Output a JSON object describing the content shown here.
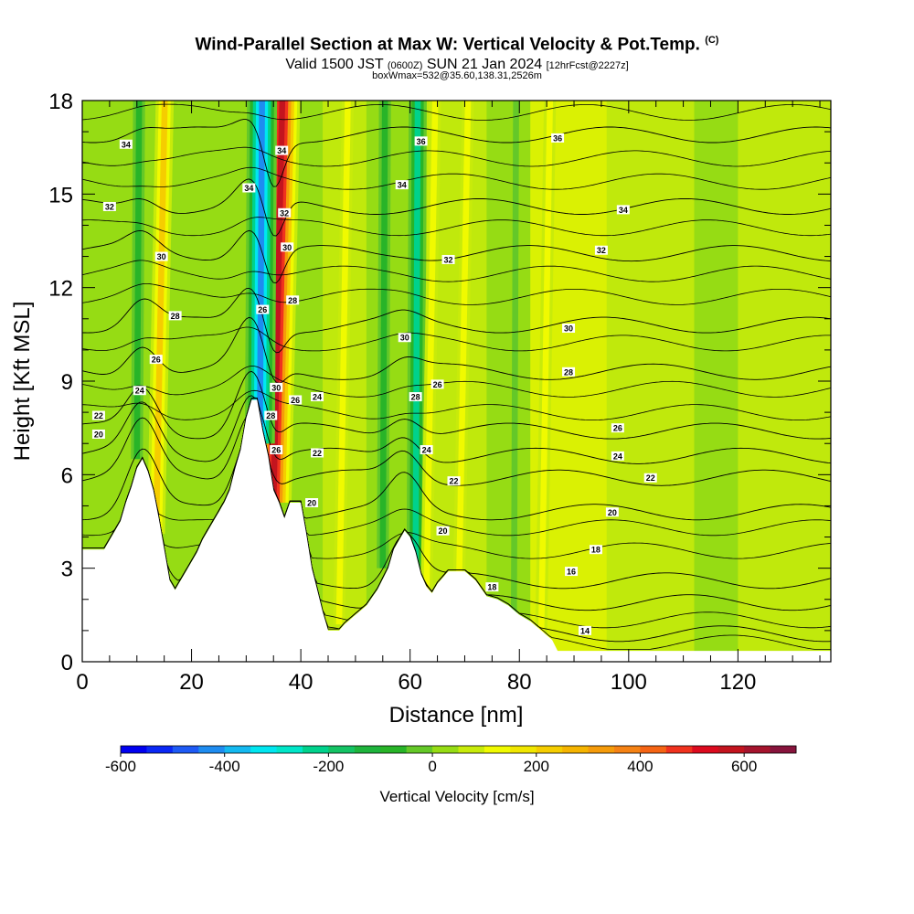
{
  "title": {
    "main": "Wind-Parallel Section at Max W: Vertical Velocity & Pot.Temp.",
    "copyright": "(C)",
    "valid_prefix": "Valid 1500 JST",
    "valid_utc": "(0600Z)",
    "valid_date": "SUN 21 Jan 2024",
    "forecast": "[12hrFcst@2227z]",
    "box_info": "boxWmax=532@35.60,138.31,2526m"
  },
  "chart_data": {
    "type": "heatmap",
    "xlabel": "Distance [nm]",
    "ylabel": "Height [Kft MSL]",
    "xlim": [
      0,
      137
    ],
    "ylim": [
      0,
      18
    ],
    "x_ticks": [
      0,
      20,
      40,
      60,
      80,
      100,
      120
    ],
    "y_ticks": [
      0,
      3,
      6,
      9,
      12,
      15,
      18
    ],
    "colorbar": {
      "label": "Vertical Velocity [cm/s]",
      "range": [
        -600,
        700
      ],
      "step": 50,
      "ticks": [
        -600,
        -400,
        -200,
        0,
        200,
        400,
        600
      ],
      "colors": [
        "#0000f0",
        "#0a28f5",
        "#1e5af5",
        "#1e8cf0",
        "#14b9f0",
        "#00e6f0",
        "#00e6c8",
        "#00d28c",
        "#14c364",
        "#1eb43c",
        "#28b428",
        "#64c828",
        "#96dc14",
        "#c8eb0a",
        "#f0fa00",
        "#f0e600",
        "#f5cd00",
        "#f5b400",
        "#f59b0a",
        "#f58214",
        "#f56414",
        "#f0321e",
        "#dc0a1e",
        "#c3141e",
        "#a5142d",
        "#87143c",
        "#78145a",
        "#5a0a64"
      ]
    },
    "terrain": [
      [
        0,
        3.6
      ],
      [
        4,
        3.6
      ],
      [
        5,
        3.9
      ],
      [
        6,
        4.2
      ],
      [
        7,
        4.5
      ],
      [
        8,
        5.1
      ],
      [
        9,
        5.6
      ],
      [
        10,
        6.2
      ],
      [
        11,
        6.5
      ],
      [
        12,
        6.1
      ],
      [
        13,
        5.5
      ],
      [
        14,
        4.6
      ],
      [
        15,
        3.6
      ],
      [
        16,
        2.6
      ],
      [
        17,
        2.3
      ],
      [
        18,
        2.6
      ],
      [
        19,
        2.9
      ],
      [
        20,
        3.2
      ],
      [
        21,
        3.5
      ],
      [
        22,
        3.9
      ],
      [
        23,
        4.2
      ],
      [
        24,
        4.5
      ],
      [
        25,
        4.8
      ],
      [
        26,
        5.1
      ],
      [
        27,
        5.5
      ],
      [
        28,
        6.2
      ],
      [
        29,
        6.8
      ],
      [
        30,
        7.8
      ],
      [
        31,
        8.4
      ],
      [
        32,
        8.4
      ],
      [
        33,
        7.4
      ],
      [
        34,
        6.6
      ],
      [
        35,
        5.5
      ],
      [
        36,
        5.1
      ],
      [
        37,
        4.6
      ],
      [
        38,
        5.1
      ],
      [
        40,
        5.1
      ],
      [
        41,
        4.1
      ],
      [
        42,
        3.0
      ],
      [
        43,
        2.3
      ],
      [
        44,
        1.6
      ],
      [
        45,
        1.0
      ],
      [
        47,
        1.0
      ],
      [
        48,
        1.2
      ],
      [
        50,
        1.5
      ],
      [
        52,
        1.8
      ],
      [
        54,
        2.3
      ],
      [
        56,
        3.0
      ],
      [
        57,
        3.6
      ],
      [
        58,
        3.9
      ],
      [
        59,
        4.2
      ],
      [
        60,
        4.0
      ],
      [
        61,
        3.5
      ],
      [
        62,
        2.8
      ],
      [
        63,
        2.4
      ],
      [
        64,
        2.2
      ],
      [
        65,
        2.5
      ],
      [
        67,
        2.9
      ],
      [
        70,
        2.9
      ],
      [
        72,
        2.6
      ],
      [
        74,
        2.1
      ],
      [
        76,
        2.0
      ],
      [
        78,
        1.8
      ],
      [
        80,
        1.5
      ],
      [
        82,
        1.3
      ],
      [
        84,
        1.0
      ],
      [
        86,
        0.7
      ],
      [
        87,
        0.35
      ],
      [
        137,
        0.35
      ]
    ],
    "theta_contours": [
      {
        "label": "14",
        "h": 0.9
      },
      {
        "label": "16",
        "h": 1.9
      },
      {
        "label": "18",
        "h": 2.6
      },
      {
        "label": "20",
        "h": 4.8
      },
      {
        "label": "22",
        "h": 5.9
      },
      {
        "label": "24",
        "h": 6.6
      },
      {
        "label": "26",
        "h": 7.4
      },
      {
        "label": "28",
        "h": 9.3
      },
      {
        "label": "30",
        "h": 10.8
      },
      {
        "label": "32",
        "h": 13.1
      },
      {
        "label": "34",
        "h": 14.6
      },
      {
        "label": "36",
        "h": 16.9
      }
    ],
    "contour_labels": [
      {
        "text": "34",
        "x": 8,
        "y": 16.6
      },
      {
        "text": "32",
        "x": 5,
        "y": 14.6
      },
      {
        "text": "30",
        "x": 14.5,
        "y": 13.0
      },
      {
        "text": "28",
        "x": 17,
        "y": 11.1
      },
      {
        "text": "26",
        "x": 13.5,
        "y": 9.7
      },
      {
        "text": "24",
        "x": 10.5,
        "y": 8.7
      },
      {
        "text": "22",
        "x": 3,
        "y": 7.9
      },
      {
        "text": "20",
        "x": 3,
        "y": 7.3
      },
      {
        "text": "34",
        "x": 30.5,
        "y": 15.2
      },
      {
        "text": "34",
        "x": 36.5,
        "y": 16.4
      },
      {
        "text": "32",
        "x": 37,
        "y": 14.4
      },
      {
        "text": "30",
        "x": 37.5,
        "y": 13.3
      },
      {
        "text": "28",
        "x": 38.5,
        "y": 11.6
      },
      {
        "text": "26",
        "x": 33,
        "y": 11.3
      },
      {
        "text": "30",
        "x": 35.5,
        "y": 8.8
      },
      {
        "text": "28",
        "x": 34.5,
        "y": 7.9
      },
      {
        "text": "26",
        "x": 35.5,
        "y": 6.8
      },
      {
        "text": "26",
        "x": 39,
        "y": 8.4
      },
      {
        "text": "24",
        "x": 43,
        "y": 8.5
      },
      {
        "text": "22",
        "x": 43,
        "y": 6.7
      },
      {
        "text": "20",
        "x": 42,
        "y": 5.1
      },
      {
        "text": "36",
        "x": 62,
        "y": 16.7
      },
      {
        "text": "34",
        "x": 58.5,
        "y": 15.3
      },
      {
        "text": "32",
        "x": 67,
        "y": 12.9
      },
      {
        "text": "30",
        "x": 59,
        "y": 10.4
      },
      {
        "text": "28",
        "x": 61,
        "y": 8.5
      },
      {
        "text": "26",
        "x": 65,
        "y": 8.9
      },
      {
        "text": "24",
        "x": 63,
        "y": 6.8
      },
      {
        "text": "22",
        "x": 68,
        "y": 5.8
      },
      {
        "text": "20",
        "x": 66,
        "y": 4.2
      },
      {
        "text": "18",
        "x": 75,
        "y": 2.4
      },
      {
        "text": "36",
        "x": 87,
        "y": 16.8
      },
      {
        "text": "34",
        "x": 99,
        "y": 14.5
      },
      {
        "text": "32",
        "x": 95,
        "y": 13.2
      },
      {
        "text": "30",
        "x": 89,
        "y": 10.7
      },
      {
        "text": "28",
        "x": 89,
        "y": 9.3
      },
      {
        "text": "26",
        "x": 98,
        "y": 7.5
      },
      {
        "text": "24",
        "x": 98,
        "y": 6.6
      },
      {
        "text": "22",
        "x": 104,
        "y": 5.9
      },
      {
        "text": "20",
        "x": 97,
        "y": 4.8
      },
      {
        "text": "18",
        "x": 94,
        "y": 3.6
      },
      {
        "text": "16",
        "x": 89.5,
        "y": 2.9
      },
      {
        "text": "14",
        "x": 92,
        "y": 1.0
      }
    ],
    "updraft_bands": [
      {
        "x": 14.5,
        "sign": "up",
        "strength": 0.55
      },
      {
        "x": 36,
        "sign": "up",
        "strength": 1.0
      },
      {
        "x": 33.5,
        "sign": "down",
        "strength": 1.0
      },
      {
        "x": 11,
        "sign": "down",
        "strength": 0.45
      },
      {
        "x": 48,
        "sign": "up",
        "strength": 0.35
      },
      {
        "x": 56,
        "sign": "down",
        "strength": 0.35
      },
      {
        "x": 62,
        "sign": "down",
        "strength": 0.6
      },
      {
        "x": 64,
        "sign": "up",
        "strength": 0.3
      },
      {
        "x": 70,
        "sign": "up",
        "strength": 0.3
      },
      {
        "x": 85,
        "sign": "up",
        "strength": 0.35
      },
      {
        "x": 80,
        "sign": "down",
        "strength": 0.25
      }
    ]
  }
}
